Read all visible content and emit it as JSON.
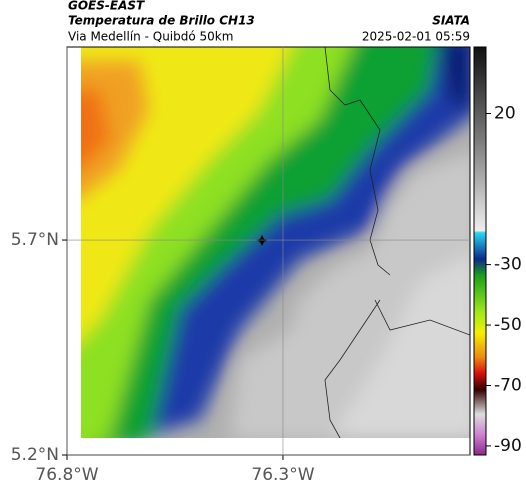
{
  "header": {
    "source": "GOES-EAST",
    "title": "Temperatura de Brillo CH13",
    "subtitle": "Via Medellín - Quibdó 50km",
    "agency": "SIATA",
    "datetime": "2025-02-01 05:59"
  },
  "map": {
    "xlim": [
      -76.8,
      -75.867
    ],
    "ylim": [
      5.2,
      6.149
    ],
    "xticks": [
      {
        "value": -76.8,
        "label": "76.8°W"
      },
      {
        "value": -76.3,
        "label": "76.3°W"
      }
    ],
    "yticks": [
      {
        "value": 5.2,
        "label": "5.2°N"
      },
      {
        "value": 5.7,
        "label": "5.7°N"
      }
    ]
  },
  "colorbar": {
    "lim": [
      -93,
      42
    ],
    "ticks": [
      20,
      -30,
      -50,
      -70,
      -90
    ]
  }
}
